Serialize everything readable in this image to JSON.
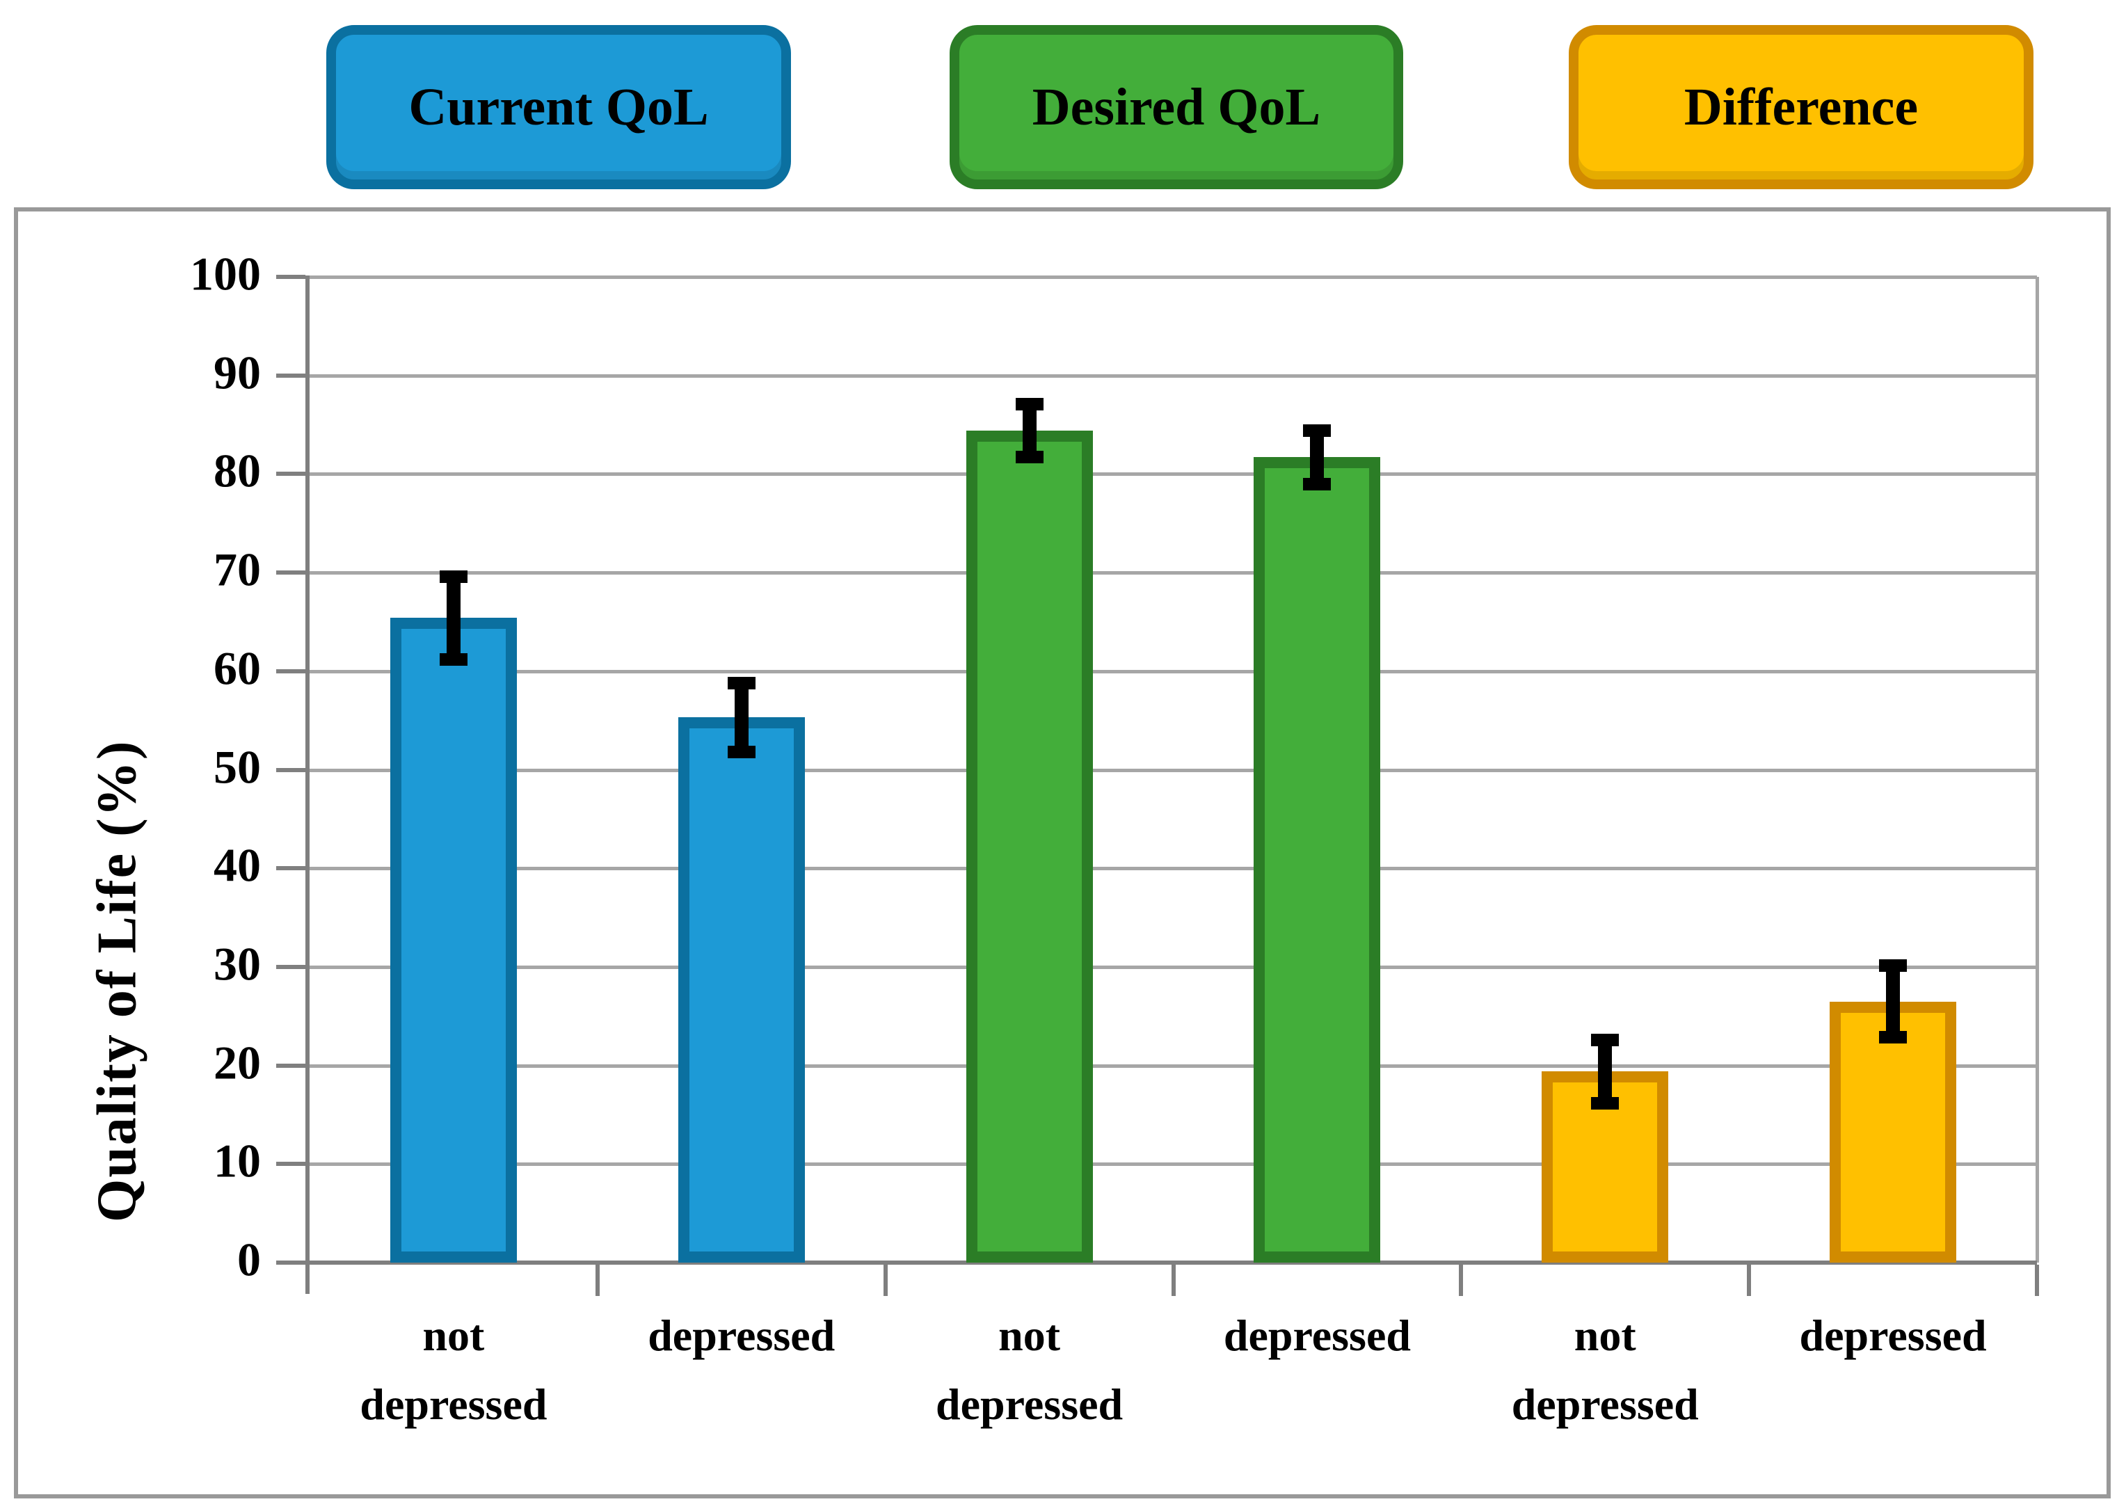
{
  "chart_data": {
    "type": "bar",
    "title": "",
    "xlabel": "",
    "ylabel": "Quality of Life (%)",
    "ylim": [
      0,
      100
    ],
    "yticks": [
      0,
      10,
      20,
      30,
      40,
      50,
      60,
      70,
      80,
      90,
      100
    ],
    "grid": true,
    "legend_position": "top",
    "categories": [
      "not depressed",
      "depressed",
      "not depressed",
      "depressed",
      "not depressed",
      "depressed"
    ],
    "x_label_lines": [
      [
        "not",
        "depressed"
      ],
      [
        "depressed"
      ],
      [
        "not",
        "depressed"
      ],
      [
        "depressed"
      ],
      [
        "not",
        "depressed"
      ],
      [
        "depressed"
      ]
    ],
    "series": [
      {
        "name": "Current QoL",
        "fill": "#1d9ad6",
        "border": "#0b70a0",
        "points": [
          {
            "category": "not depressed",
            "value": 65.4,
            "error": 4.7
          },
          {
            "category": "depressed",
            "value": 55.3,
            "error": 4.0
          }
        ]
      },
      {
        "name": "Desired QoL",
        "fill": "#43ae3a",
        "border": "#2b7d26",
        "points": [
          {
            "category": "not depressed",
            "value": 84.4,
            "error": 3.2
          },
          {
            "category": "depressed",
            "value": 81.7,
            "error": 3.2
          }
        ]
      },
      {
        "name": "Difference",
        "fill": "#ffc000",
        "border": "#d18b00",
        "points": [
          {
            "category": "not depressed",
            "value": 19.4,
            "error": 3.7
          },
          {
            "category": "depressed",
            "value": 26.5,
            "error": 4.1
          }
        ]
      }
    ],
    "style": {
      "gridline_color": "#a6a6a6",
      "axis_color": "#7f7f7f",
      "frame_color": "#999999",
      "error_bar_color": "#000000",
      "text_color": "#000000",
      "background": "#ffffff"
    }
  }
}
